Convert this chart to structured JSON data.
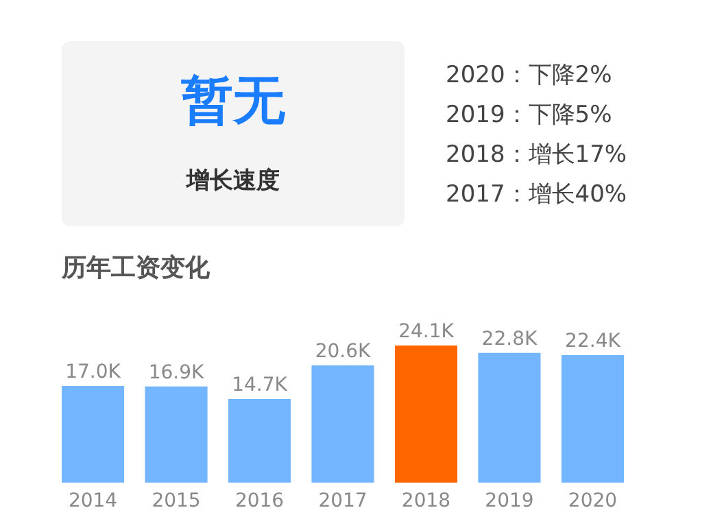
{
  "chart_data": [
    {
      "type": "other",
      "title": "暂无",
      "subtitle": "增长速度",
      "annotations": [
        "2020：下降2%",
        "2019：下降5%",
        "2018：增长17%",
        "2017：增长40%"
      ]
    },
    {
      "type": "bar",
      "title": "历年工资变化",
      "categories": [
        "2014",
        "2015",
        "2016",
        "2017",
        "2018",
        "2019",
        "2020"
      ],
      "values": [
        17.0,
        16.9,
        14.7,
        20.6,
        24.1,
        22.8,
        22.4
      ],
      "value_labels": [
        "17.0K",
        "16.9K",
        "14.7K",
        "20.6K",
        "24.1K",
        "22.8K",
        "22.4K"
      ],
      "colors": [
        "#74b5ff",
        "#74b5ff",
        "#74b5ff",
        "#74b5ff",
        "#ff6600",
        "#74b5ff",
        "#74b5ff"
      ]
    }
  ]
}
